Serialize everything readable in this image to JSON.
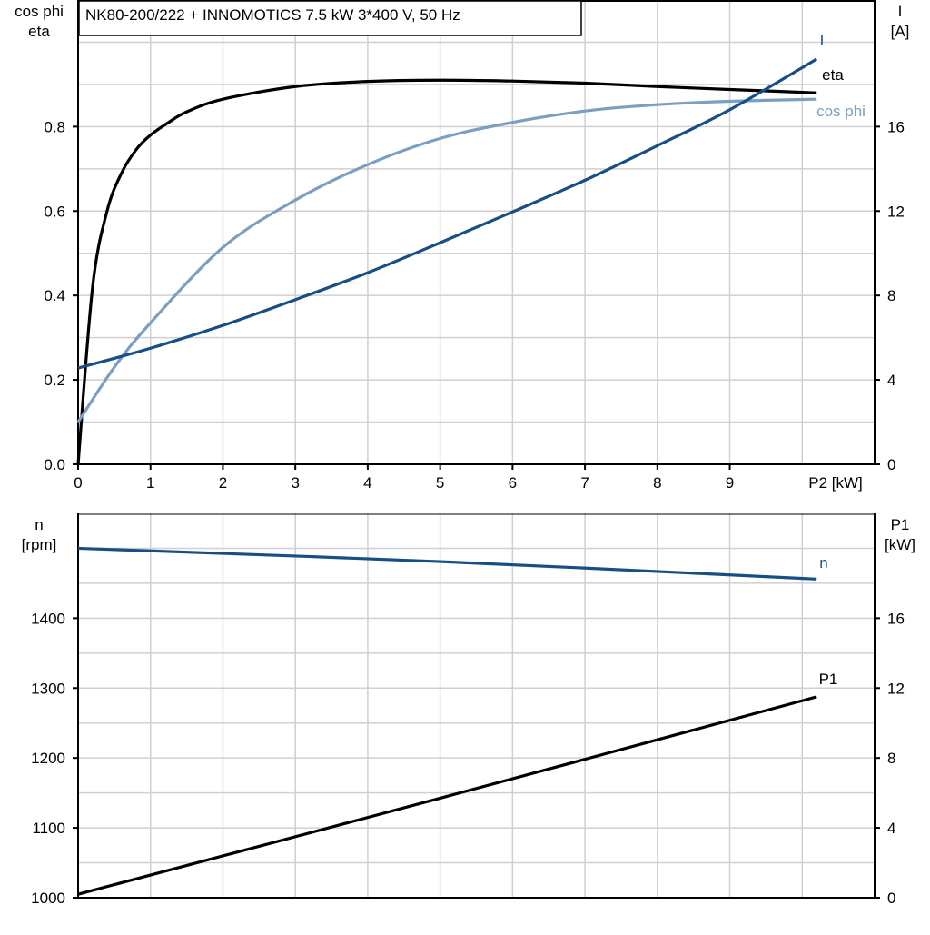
{
  "title": "NK80-200/222 + INNOMOTICS   7.5 kW   3*400 V, 50 Hz",
  "colors": {
    "eta": "#000000",
    "cosphi": "#7a9fc0",
    "I": "#164f85",
    "n": "#164f85",
    "P1": "#000000",
    "grid": "#d0d0d0"
  },
  "chart_data": [
    {
      "type": "line",
      "xlabel": "P2 [kW]",
      "ylabel_left": [
        "cos phi",
        "eta"
      ],
      "ylabel_right": [
        "I",
        "[A]"
      ],
      "xlim": [
        0,
        11
      ],
      "ylim_left": [
        0,
        1.1
      ],
      "ylim_right": [
        0,
        22
      ],
      "x_ticks": [
        0,
        1,
        2,
        3,
        4,
        5,
        6,
        7,
        8,
        9
      ],
      "y_ticks_left": [
        "0.0",
        "0.2",
        "0.4",
        "0.6",
        "0.8"
      ],
      "y_ticks_right": [
        "0",
        "4",
        "8",
        "12",
        "16"
      ],
      "grid": true,
      "series": [
        {
          "name": "eta",
          "axis": "left",
          "color_key": "eta",
          "x": [
            0,
            0.2,
            0.4,
            0.6,
            0.8,
            1,
            1.25,
            1.5,
            2,
            3,
            4,
            5,
            6,
            7,
            8,
            9,
            10.2
          ],
          "y": [
            0,
            0.42,
            0.6,
            0.69,
            0.745,
            0.78,
            0.81,
            0.835,
            0.865,
            0.895,
            0.907,
            0.91,
            0.908,
            0.903,
            0.895,
            0.888,
            0.88
          ]
        },
        {
          "name": "cos phi",
          "axis": "left",
          "color_key": "cosphi",
          "x": [
            0,
            0.5,
            1,
            2,
            3,
            4,
            5,
            6,
            7,
            8,
            9,
            10.2
          ],
          "y": [
            0.1,
            0.23,
            0.335,
            0.514,
            0.626,
            0.71,
            0.772,
            0.81,
            0.837,
            0.852,
            0.86,
            0.865
          ]
        },
        {
          "name": "I",
          "axis": "right",
          "color_key": "I",
          "x": [
            0,
            1,
            2,
            3,
            4,
            5,
            6,
            7,
            8,
            9,
            10.2
          ],
          "y": [
            4.56,
            5.5,
            6.58,
            7.8,
            9.08,
            10.5,
            11.96,
            13.46,
            15.1,
            16.8,
            19.2
          ]
        }
      ]
    },
    {
      "type": "line",
      "ylabel_left": [
        "n",
        "[rpm]"
      ],
      "ylabel_right": [
        "P1",
        "[kW]"
      ],
      "xlim": [
        0,
        11
      ],
      "ylim_left": [
        1000,
        1550
      ],
      "ylim_right": [
        0,
        22
      ],
      "y_ticks_left": [
        "1000",
        "1100",
        "1200",
        "1300",
        "1400"
      ],
      "y_ticks_right": [
        "0",
        "4",
        "8",
        "12",
        "16"
      ],
      "grid": true,
      "series": [
        {
          "name": "n",
          "axis": "left",
          "color_key": "n",
          "x": [
            0,
            5,
            10.2
          ],
          "y": [
            1500,
            1481,
            1456
          ]
        },
        {
          "name": "P1",
          "axis": "right",
          "color_key": "P1",
          "x": [
            0,
            5,
            10.2
          ],
          "y": [
            0.2,
            5.7,
            11.5
          ]
        }
      ]
    }
  ]
}
